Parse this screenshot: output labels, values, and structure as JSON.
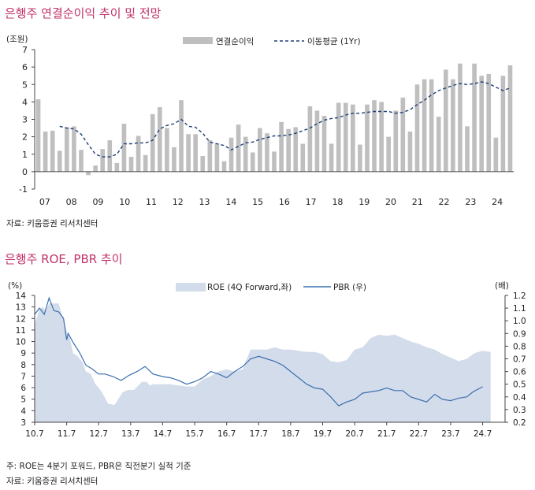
{
  "chart_data": [
    {
      "type": "bar",
      "title": "은행주 연결순이익 추이 및 전망",
      "y_unit": "(조원)",
      "ylim": [
        -1,
        7
      ],
      "y_ticks": [
        -1,
        0,
        1,
        2,
        3,
        4,
        5,
        6,
        7
      ],
      "x_ticks": [
        "07",
        "08",
        "09",
        "10",
        "11",
        "12",
        "13",
        "14",
        "15",
        "16",
        "17",
        "18",
        "19",
        "20",
        "21",
        "22",
        "23",
        "24"
      ],
      "legend": {
        "bar": "연결순이익",
        "line": "이동평균 (1Yr)"
      },
      "colors": {
        "bar": "#bfbfbf",
        "line": "#1f3f77"
      },
      "series": [
        {
          "name": "연결순이익",
          "kind": "bar",
          "values": [
            4.15,
            2.3,
            2.35,
            1.2,
            2.55,
            2.6,
            1.25,
            -0.2,
            0.35,
            1.3,
            1.8,
            0.5,
            2.75,
            0.85,
            2.05,
            0.95,
            3.3,
            3.7,
            2.5,
            1.4,
            4.1,
            2.15,
            2.15,
            0.9,
            1.8,
            1.6,
            0.6,
            1.95,
            2.7,
            2.0,
            1.1,
            2.5,
            2.2,
            1.15,
            2.85,
            2.45,
            2.55,
            1.6,
            3.75,
            3.5,
            3.2,
            1.6,
            3.95,
            3.95,
            3.85,
            1.55,
            3.85,
            4.1,
            4.0,
            2.0,
            3.5,
            4.25,
            2.3,
            5.0,
            5.3,
            5.3,
            3.15,
            5.85,
            5.3,
            6.2,
            2.6,
            6.2,
            5.5,
            5.6,
            1.95,
            5.5,
            6.1
          ]
        },
        {
          "name": "이동평균 (1Yr)",
          "kind": "line",
          "values": [
            null,
            null,
            null,
            2.6,
            2.5,
            2.45,
            2.15,
            1.55,
            1.0,
            0.85,
            0.85,
            1.0,
            1.6,
            1.6,
            1.65,
            1.65,
            1.8,
            2.45,
            2.65,
            2.75,
            3.0,
            2.6,
            2.55,
            2.2,
            1.7,
            1.6,
            1.5,
            1.25,
            1.45,
            1.65,
            1.7,
            1.85,
            1.95,
            2.05,
            2.05,
            2.1,
            2.2,
            2.35,
            2.5,
            2.75,
            2.95,
            3.05,
            3.1,
            3.25,
            3.35,
            3.35,
            3.4,
            3.45,
            3.45,
            3.45,
            3.35,
            3.4,
            3.55,
            3.85,
            4.1,
            4.4,
            4.65,
            4.8,
            4.95,
            5.05,
            5.0,
            5.05,
            5.15,
            5.05,
            4.85,
            4.65,
            4.8
          ]
        }
      ]
    },
    {
      "type": "area",
      "title": "은행주 ROE, PBR 추이",
      "y_left_unit": "(%)",
      "y_right_unit": "(배)",
      "ylim_left": [
        3,
        14
      ],
      "ylim_right": [
        0.2,
        1.2
      ],
      "y_left_ticks": [
        3,
        4,
        5,
        6,
        7,
        8,
        9,
        10,
        11,
        12,
        13,
        14
      ],
      "y_right_ticks": [
        0.2,
        0.3,
        0.4,
        0.5,
        0.6,
        0.7,
        0.8,
        0.9,
        1.0,
        1.1,
        1.2
      ],
      "x_ticks": [
        "10.7",
        "11.7",
        "12.7",
        "13.7",
        "14.7",
        "15.7",
        "16.7",
        "17.7",
        "18.7",
        "19.7",
        "20.7",
        "21.7",
        "22.7",
        "23.7",
        "24.7"
      ],
      "colors": {
        "area": "#d3dcea",
        "line": "#3c6fb0"
      },
      "series": [
        {
          "name": "ROE (4Q Forward,좌)",
          "kind": "area",
          "axis": "left",
          "x": [
            0,
            0.15,
            0.25,
            0.35,
            0.45,
            0.5,
            0.75,
            1.0,
            1.1,
            1.2,
            1.35,
            1.5,
            1.6,
            1.75,
            1.9,
            2.0,
            2.1,
            2.3,
            2.5,
            2.75,
            2.9,
            3.1,
            3.35,
            3.5,
            3.6,
            3.7,
            3.95,
            4.0,
            4.2,
            4.5,
            4.75,
            5.0,
            5.25,
            5.5,
            5.75,
            6.0,
            6.25,
            6.5,
            6.75,
            7.0,
            7.25,
            7.5,
            7.75,
            8.0,
            8.25,
            8.5,
            8.75,
            9.0,
            9.25,
            9.5,
            9.75,
            10.0,
            10.25,
            10.5,
            10.75,
            11.0,
            11.25,
            11.5,
            11.75,
            12.0,
            12.25,
            12.5,
            12.75,
            13.0,
            13.25,
            13.5,
            13.75,
            14.0,
            14.25
          ],
          "y": [
            11.5,
            12.8,
            13.0,
            12.7,
            13.3,
            13.3,
            13.3,
            10.9,
            10.3,
            9.0,
            8.7,
            8.2,
            7.4,
            7.2,
            6.3,
            6.0,
            5.6,
            4.6,
            4.5,
            5.6,
            5.8,
            5.8,
            6.5,
            6.5,
            6.2,
            6.3,
            6.3,
            6.3,
            6.3,
            6.2,
            6.1,
            6.1,
            6.7,
            7.0,
            7.4,
            7.6,
            7.4,
            7.6,
            9.3,
            9.3,
            9.3,
            9.5,
            9.3,
            9.3,
            9.2,
            9.1,
            9.1,
            8.9,
            8.3,
            8.2,
            8.4,
            9.3,
            9.5,
            10.3,
            10.6,
            10.5,
            10.6,
            10.3,
            10.0,
            9.8,
            9.5,
            9.3,
            8.9,
            8.6,
            8.3,
            8.5,
            9.0,
            9.2,
            9.1
          ]
        },
        {
          "name": "PBR (우)",
          "kind": "line",
          "axis": "right",
          "x": [
            0,
            0.15,
            0.3,
            0.45,
            0.6,
            0.75,
            0.9,
            1.0,
            1.05,
            1.2,
            1.4,
            1.6,
            1.8,
            2.0,
            2.2,
            2.45,
            2.7,
            2.95,
            3.2,
            3.45,
            3.7,
            4.0,
            4.25,
            4.5,
            4.75,
            5.0,
            5.25,
            5.5,
            5.75,
            6.0,
            6.25,
            6.5,
            6.75,
            7.0,
            7.25,
            7.5,
            7.75,
            8.0,
            8.25,
            8.5,
            8.75,
            9.0,
            9.25,
            9.5,
            9.75,
            10.0,
            10.25,
            10.5,
            10.75,
            11.0,
            11.25,
            11.5,
            11.75,
            12.0,
            12.25,
            12.5,
            12.75,
            13.0,
            13.25,
            13.5,
            13.7,
            13.85,
            14.0
          ],
          "y": [
            1.05,
            1.1,
            1.05,
            1.18,
            1.08,
            1.07,
            1.02,
            0.85,
            0.9,
            0.83,
            0.75,
            0.65,
            0.62,
            0.58,
            0.58,
            0.56,
            0.53,
            0.57,
            0.6,
            0.64,
            0.58,
            0.56,
            0.55,
            0.53,
            0.5,
            0.52,
            0.55,
            0.6,
            0.58,
            0.55,
            0.6,
            0.64,
            0.7,
            0.72,
            0.7,
            0.68,
            0.65,
            0.6,
            0.55,
            0.5,
            0.47,
            0.46,
            0.4,
            0.33,
            0.36,
            0.38,
            0.43,
            0.44,
            0.45,
            0.47,
            0.45,
            0.45,
            0.4,
            0.38,
            0.36,
            0.42,
            0.38,
            0.37,
            0.39,
            0.4,
            0.44,
            0.46,
            0.48
          ]
        }
      ]
    }
  ],
  "page": {
    "title1": "은행주 연결순이익 추이 및 전망",
    "source1": "자료:  키움증권  리서치센터",
    "title2": "은행주 ROE, PBR 추이",
    "note2": "주: ROE는 4분기 포워드, PBR은 직전분기 실적 기준",
    "source2": "자료:  키움증권  리서치센터"
  }
}
